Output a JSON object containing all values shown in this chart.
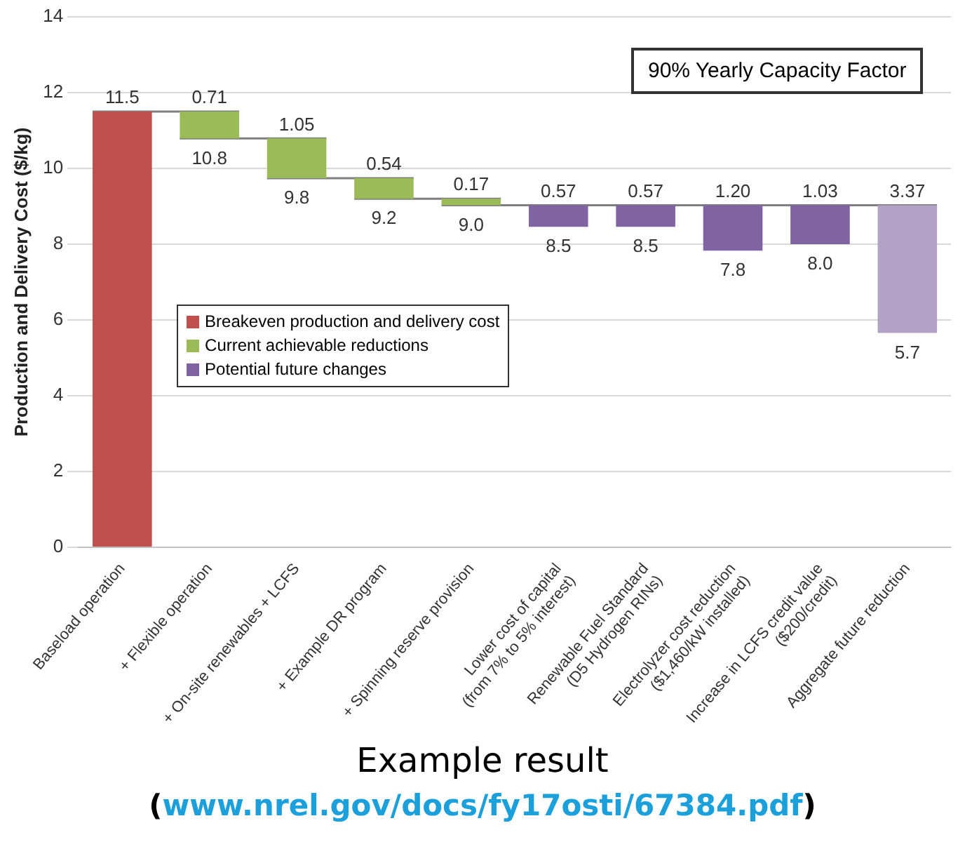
{
  "chart_data": {
    "type": "bar",
    "ylabel": "Production and Delivery Cost ($/kg)",
    "categories": [
      "Baseload operation",
      "+ Flexible operation",
      "+ On-site renewables + LCFS",
      "+ Example DR program",
      "+ Spinning reserve provision",
      "Lower cost of capital\n(from 7% to 5% interest)",
      "Renewable Fuel Standard\n(D5 Hydrogen RINs)",
      "Electrolyzer cost reduction\n($1,460/kW installed)",
      "Increase in LCFS credit value\n($200/credit)",
      "Aggregate future reduction"
    ],
    "series": [
      {
        "name": "Breakeven production and delivery cost",
        "color": "#c0504d",
        "base": [
          0,
          null,
          null,
          null,
          null,
          null,
          null,
          null,
          null,
          null
        ],
        "values": [
          11.5,
          null,
          null,
          null,
          null,
          null,
          null,
          null,
          null,
          null
        ],
        "value_labels": [
          "11.5",
          null,
          null,
          null,
          null,
          null,
          null,
          null,
          null,
          null
        ]
      },
      {
        "name": "Current achievable reductions",
        "color": "#9bbb59",
        "base": [
          null,
          10.79,
          9.74,
          9.2,
          9.03,
          null,
          null,
          null,
          null,
          null
        ],
        "values": [
          null,
          0.71,
          1.05,
          0.54,
          0.17,
          null,
          null,
          null,
          null,
          null
        ],
        "value_labels": [
          null,
          "0.71",
          "1.05",
          "0.54",
          "0.17",
          null,
          null,
          null,
          null,
          null
        ]
      },
      {
        "name": "Potential future changes",
        "color": "#8064a2",
        "colors": [
          null,
          null,
          null,
          null,
          null,
          "#8064a2",
          "#8064a2",
          "#8064a2",
          "#8064a2",
          "#b3a2c7"
        ],
        "base": [
          null,
          null,
          null,
          null,
          null,
          8.46,
          8.46,
          7.83,
          8,
          5.66
        ],
        "values": [
          null,
          null,
          null,
          null,
          null,
          0.57,
          0.57,
          1.2,
          1.03,
          3.37
        ],
        "value_labels": [
          null,
          null,
          null,
          null,
          null,
          "0.57",
          "0.57",
          "1.20",
          "1.03",
          "3.37"
        ]
      }
    ],
    "ylim": [
      0,
      14
    ],
    "yticks": [
      0,
      2,
      4,
      6,
      8,
      10,
      12,
      14
    ],
    "grid": "y",
    "legend": "left",
    "annotations": [
      "90% Yearly Capacity Factor",
      {
        "text": "10.8",
        "x": "+ Flexible operation",
        "y": 10.79
      },
      {
        "text": "9.8",
        "x": "+ On-site renewables + LCFS",
        "y": 9.74
      },
      {
        "text": "9.2",
        "x": "+ Example DR program",
        "y": 9.2
      },
      {
        "text": "9.0",
        "x": "+ Spinning reserve provision",
        "y": 9.03
      },
      {
        "text": "8.5",
        "x": "Lower cost of capital\n(from 7% to 5% interest)",
        "y": 8.46
      },
      {
        "text": "8.5",
        "x": "Renewable Fuel Standard\n(D5 Hydrogen RINs)",
        "y": 8.46
      },
      {
        "text": "7.8",
        "x": "Electrolyzer cost reduction\n($1,460/kW installed)",
        "y": 7.83
      },
      {
        "text": "8.0",
        "x": "Increase in LCFS credit value\n($200/credit)",
        "y": 8
      },
      {
        "text": "5.7",
        "x": "Aggregate future reduction",
        "y": 5.66
      },
      "Example result",
      "(www.nrel.gov/docs/fy17osti/67384.pdf)"
    ]
  }
}
